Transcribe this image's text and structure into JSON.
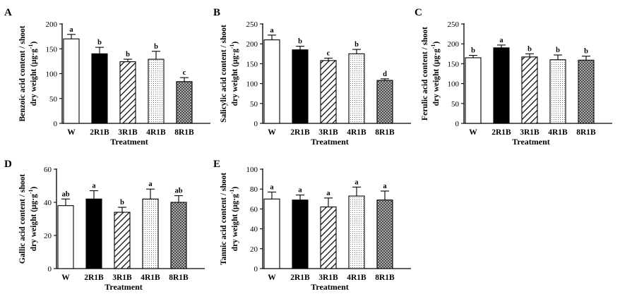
{
  "chart_data": [
    {
      "type": "bar",
      "panel": "A",
      "categories": [
        "W",
        "2R1B",
        "3R1B",
        "4R1B",
        "8R1B"
      ],
      "values": [
        170,
        140,
        124,
        129,
        84
      ],
      "errors": [
        9,
        13,
        5,
        16,
        8
      ],
      "significance": [
        "a",
        "b",
        "b",
        "b",
        "c"
      ],
      "xlabel": "Treatment",
      "ylabel_line1": "Benzoic acid content / shoot",
      "ylabel_line2": "dry weight (μg·g",
      "ylabel_sup": "-1",
      "ylabel_end": ")",
      "ylim": [
        0,
        200
      ],
      "yticks": [
        0,
        50,
        100,
        150,
        200
      ]
    },
    {
      "type": "bar",
      "panel": "B",
      "categories": [
        "W",
        "2R1B",
        "3R1B",
        "4R1B",
        "8R1B"
      ],
      "values": [
        210,
        185,
        158,
        175,
        108
      ],
      "errors": [
        12,
        9,
        6,
        11,
        4
      ],
      "significance": [
        "a",
        "b",
        "c",
        "b",
        "d"
      ],
      "xlabel": "Treatment",
      "ylabel_line1": "Salicylic acid content / shoot",
      "ylabel_line2": "dry weight (μg·g",
      "ylabel_sup": "-1",
      "ylabel_end": ")",
      "ylim": [
        0,
        250
      ],
      "yticks": [
        0,
        50,
        100,
        150,
        200,
        250
      ]
    },
    {
      "type": "bar",
      "panel": "C",
      "categories": [
        "W",
        "2R1B",
        "3R1B",
        "4R1B",
        "8R1B"
      ],
      "values": [
        165,
        190,
        167,
        160,
        159
      ],
      "errors": [
        6,
        7,
        8,
        12,
        10
      ],
      "significance": [
        "b",
        "a",
        "b",
        "b",
        "b"
      ],
      "xlabel": "Treatment",
      "ylabel_line1": "Ferulic acid content / shoot",
      "ylabel_line2": "dry weight (μg·g",
      "ylabel_sup": "-1",
      "ylabel_end": ")",
      "ylim": [
        0,
        250
      ],
      "yticks": [
        0,
        50,
        100,
        150,
        200,
        250
      ]
    },
    {
      "type": "bar",
      "panel": "D",
      "categories": [
        "W",
        "2R1B",
        "3R1B",
        "4R1B",
        "8R1B"
      ],
      "values": [
        38,
        42,
        34,
        42,
        40
      ],
      "errors": [
        4,
        5,
        3,
        6,
        4
      ],
      "significance": [
        "ab",
        "a",
        "b",
        "a",
        "ab"
      ],
      "xlabel": "Treatment",
      "ylabel_line1": "Gallic acid content / shoot",
      "ylabel_line2": "dry weight (μg·g",
      "ylabel_sup": "-1",
      "ylabel_end": ")",
      "ylim": [
        0,
        60
      ],
      "yticks": [
        0,
        20,
        40,
        60
      ]
    },
    {
      "type": "bar",
      "panel": "E",
      "categories": [
        "W",
        "2R1B",
        "3R1B",
        "4R1B",
        "8R1B"
      ],
      "values": [
        70,
        69,
        62,
        73,
        69
      ],
      "errors": [
        7,
        5,
        9,
        9,
        9
      ],
      "significance": [
        "a",
        "a",
        "a",
        "a",
        "a"
      ],
      "xlabel": "Treatment",
      "ylabel_line1": "Tannic acid content / shoot",
      "ylabel_line2": "dry weight (μg·g",
      "ylabel_sup": "-1",
      "ylabel_end": ")",
      "ylim": [
        0,
        100
      ],
      "yticks": [
        0,
        20,
        40,
        60,
        80,
        100
      ]
    }
  ]
}
